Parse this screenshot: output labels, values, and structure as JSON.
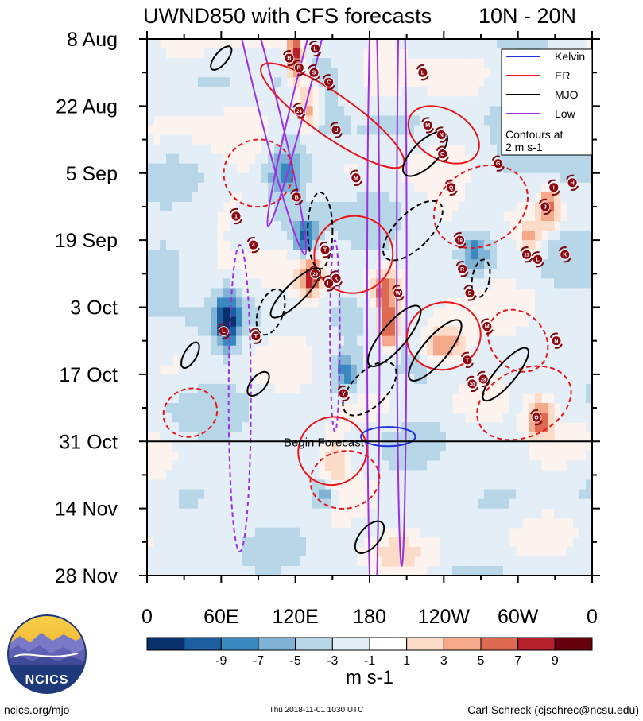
{
  "chart_data": {
    "type": "heatmap",
    "title": "UWND850 with CFS forecasts",
    "region": "10N - 20N",
    "x_tick_labels": [
      "0",
      "60E",
      "120E",
      "180",
      "120W",
      "60W",
      "0"
    ],
    "x_lon_range": [
      0,
      360
    ],
    "y_tick_labels": [
      "8 Aug",
      "22 Aug",
      "5 Sep",
      "19 Sep",
      "3 Oct",
      "17 Oct",
      "31 Oct",
      "14 Nov",
      "28 Nov"
    ],
    "y_day_range": [
      0,
      112
    ],
    "forecast_start_day": 84,
    "forecast_label": "Begin Forecast",
    "colorbar": {
      "units": "m s-1",
      "levels": [
        -11,
        -9,
        -7,
        -5,
        -3,
        -1,
        1,
        3,
        5,
        7,
        9,
        11
      ],
      "tick_labels": [
        "-9",
        "-7",
        "-5",
        "-3",
        "-1",
        "1",
        "3",
        "5",
        "7",
        "9"
      ],
      "colors": [
        "#08306b",
        "#1c5fa0",
        "#3a88c0",
        "#7fb2d5",
        "#b7d6e8",
        "#e3eef6",
        "#ffffff",
        "#fcdcc8",
        "#f3a98a",
        "#df6a53",
        "#b5202c",
        "#67000d"
      ]
    },
    "legend": {
      "entries": [
        {
          "name": "Kelvin",
          "color": "#1f2fd8"
        },
        {
          "name": "ER",
          "color": "#e8161a"
        },
        {
          "name": "MJO",
          "color": "#000000"
        },
        {
          "name": "Low",
          "color": "#9b30e0"
        }
      ],
      "note_line1": "Contours at",
      "note_line2": "2 m s-1"
    },
    "storms": [
      {
        "id": "B",
        "lon": 115,
        "day": 4
      },
      {
        "id": "R",
        "lon": 123,
        "day": 6
      },
      {
        "id": "L",
        "lon": 136,
        "day": 2
      },
      {
        "id": "S",
        "lon": 135,
        "day": 7
      },
      {
        "id": "C",
        "lon": 147,
        "day": 9
      },
      {
        "id": "24",
        "lon": 123,
        "day": 15
      },
      {
        "id": "U",
        "lon": 153,
        "day": 19
      },
      {
        "id": "L",
        "lon": 223,
        "day": 7
      },
      {
        "id": "M",
        "lon": 227,
        "day": 18
      },
      {
        "id": "N",
        "lon": 238,
        "day": 20
      },
      {
        "id": "O",
        "lon": 239,
        "day": 24
      },
      {
        "id": "G",
        "lon": 284,
        "day": 26
      },
      {
        "id": "M",
        "lon": 169,
        "day": 29
      },
      {
        "id": "B",
        "lon": 121,
        "day": 33
      },
      {
        "id": "Q",
        "lon": 246,
        "day": 31
      },
      {
        "id": "I",
        "lon": 329,
        "day": 31
      },
      {
        "id": "H",
        "lon": 344,
        "day": 30
      },
      {
        "id": "J",
        "lon": 322,
        "day": 35
      },
      {
        "id": "1",
        "lon": 72,
        "day": 37
      },
      {
        "id": "4",
        "lon": 86,
        "day": 43
      },
      {
        "id": "T",
        "lon": 144,
        "day": 44
      },
      {
        "id": "19",
        "lon": 253,
        "day": 42
      },
      {
        "id": "11",
        "lon": 307,
        "day": 45
      },
      {
        "id": "L",
        "lon": 316,
        "day": 46
      },
      {
        "id": "K",
        "lon": 338,
        "day": 45
      },
      {
        "id": "29",
        "lon": 136,
        "day": 49
      },
      {
        "id": "K",
        "lon": 153,
        "day": 50
      },
      {
        "id": "R",
        "lon": 255,
        "day": 48
      },
      {
        "id": "L",
        "lon": 147,
        "day": 51
      },
      {
        "id": "W",
        "lon": 203,
        "day": 53
      },
      {
        "id": "S",
        "lon": 261,
        "day": 53
      },
      {
        "id": "L",
        "lon": 62,
        "day": 61
      },
      {
        "id": "T",
        "lon": 88,
        "day": 62
      },
      {
        "id": "M",
        "lon": 275,
        "day": 60
      },
      {
        "id": "N",
        "lon": 331,
        "day": 63
      },
      {
        "id": "T",
        "lon": 259,
        "day": 67
      },
      {
        "id": "30",
        "lon": 263,
        "day": 72
      },
      {
        "id": "28",
        "lon": 272,
        "day": 71
      },
      {
        "id": "Y",
        "lon": 159,
        "day": 74
      },
      {
        "id": "O",
        "lon": 315,
        "day": 79
      }
    ]
  },
  "footer": {
    "url": "ncics.org/mjo",
    "timestamp": "Thu 2018-11-01 1030 UTC",
    "author": "Carl Schreck (cjschrec@ncsu.edu)",
    "logo_text": "NCICS"
  }
}
